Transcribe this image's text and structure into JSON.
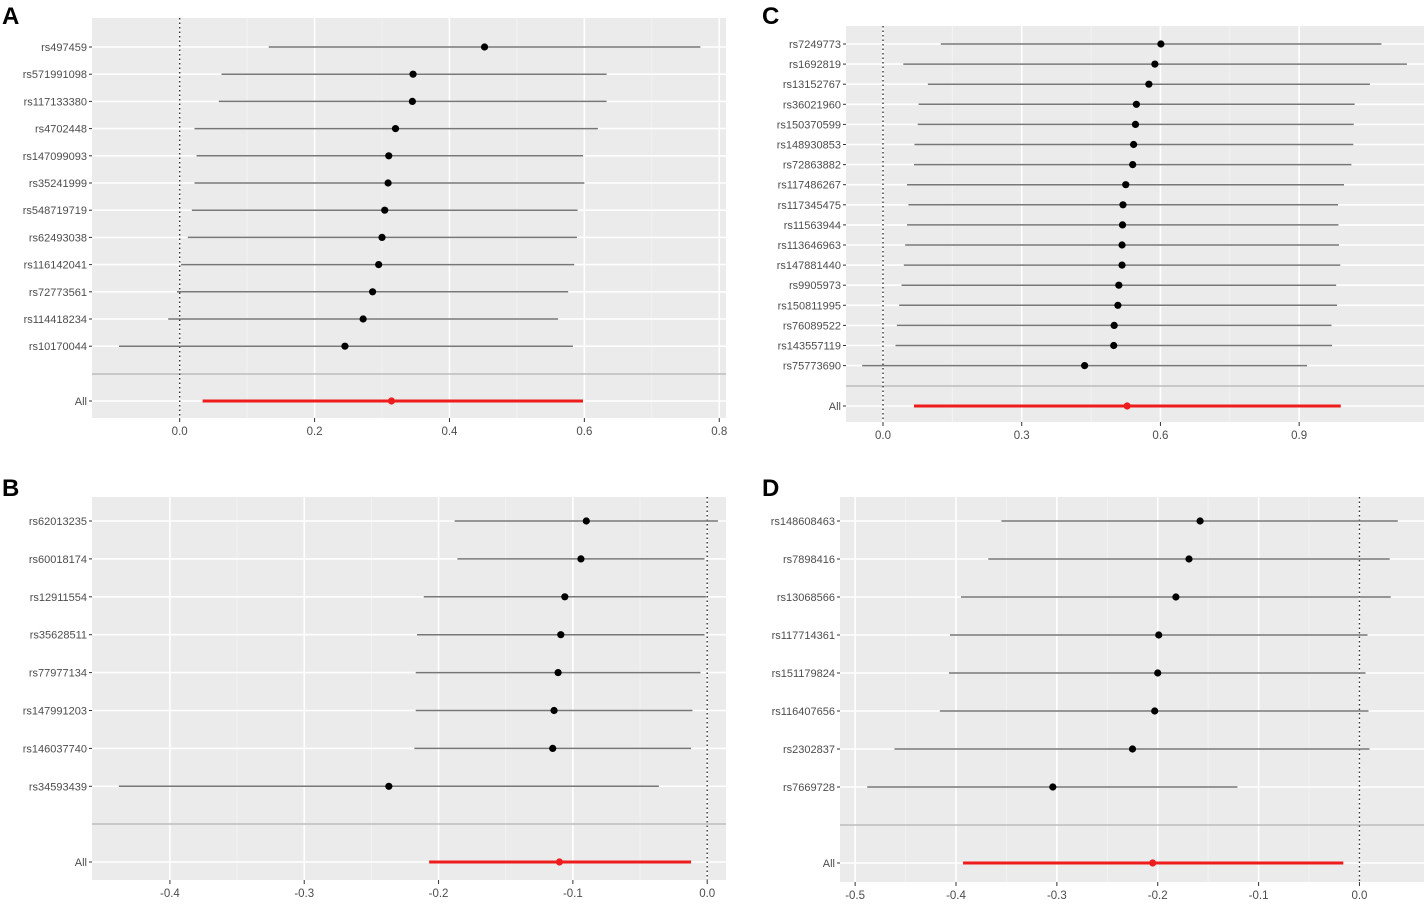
{
  "colors": {
    "panel_bg": "#ebebeb",
    "grid_major": "#ffffff",
    "grid_minor": "#f4f4f4",
    "ci_line": "#777777",
    "point": "#000000",
    "overall": "#ee1c1c",
    "separator": "#bdbdbd",
    "tick_text": "#4d4d4d",
    "panel_label": "#000000"
  },
  "chart_data": [
    {
      "id": "A",
      "type": "forest",
      "panel_label": "A",
      "xlim": [
        -0.13,
        0.81
      ],
      "xticks": [
        0.0,
        0.2,
        0.4,
        0.6,
        0.8
      ],
      "xtick_labels": [
        "0.0",
        "0.2",
        "0.4",
        "0.6",
        "0.8"
      ],
      "null_line": 0.0,
      "rows": [
        {
          "label": "rs497459",
          "est": 0.452,
          "lo": 0.132,
          "hi": 0.772
        },
        {
          "label": "rs571991098",
          "est": 0.346,
          "lo": 0.062,
          "hi": 0.633
        },
        {
          "label": "rs117133380",
          "est": 0.345,
          "lo": 0.058,
          "hi": 0.633
        },
        {
          "label": "rs4702448",
          "est": 0.32,
          "lo": 0.022,
          "hi": 0.62
        },
        {
          "label": "rs147099093",
          "est": 0.31,
          "lo": 0.025,
          "hi": 0.598
        },
        {
          "label": "rs35241999",
          "est": 0.309,
          "lo": 0.022,
          "hi": 0.6
        },
        {
          "label": "rs548719719",
          "est": 0.304,
          "lo": 0.018,
          "hi": 0.59
        },
        {
          "label": "rs62493038",
          "est": 0.3,
          "lo": 0.012,
          "hi": 0.589
        },
        {
          "label": "rs116142041",
          "est": 0.295,
          "lo": 0.002,
          "hi": 0.585
        },
        {
          "label": "rs72773561",
          "est": 0.286,
          "lo": -0.004,
          "hi": 0.576
        },
        {
          "label": "rs114418234",
          "est": 0.272,
          "lo": -0.017,
          "hi": 0.561
        },
        {
          "label": "rs10170044",
          "est": 0.245,
          "lo": -0.09,
          "hi": 0.583
        }
      ],
      "overall": {
        "label": "All",
        "est": 0.314,
        "lo": 0.034,
        "hi": 0.598
      }
    },
    {
      "id": "B",
      "type": "forest",
      "panel_label": "B",
      "xlim": [
        -0.458,
        0.014
      ],
      "xticks": [
        -0.4,
        -0.3,
        -0.2,
        -0.1,
        0.0
      ],
      "xtick_labels": [
        "-0.4",
        "-0.3",
        "-0.2",
        "-0.1",
        "0.0"
      ],
      "null_line": 0.0,
      "rows": [
        {
          "label": "rs62013235",
          "est": -0.09,
          "lo": -0.188,
          "hi": 0.008
        },
        {
          "label": "rs60018174",
          "est": -0.094,
          "lo": -0.186,
          "hi": -0.002
        },
        {
          "label": "rs12911554",
          "est": -0.106,
          "lo": -0.211,
          "hi": -0.001
        },
        {
          "label": "rs35628511",
          "est": -0.109,
          "lo": -0.216,
          "hi": -0.002
        },
        {
          "label": "rs77977134",
          "est": -0.111,
          "lo": -0.217,
          "hi": -0.005
        },
        {
          "label": "rs147991203",
          "est": -0.114,
          "lo": -0.217,
          "hi": -0.011
        },
        {
          "label": "rs146037740",
          "est": -0.115,
          "lo": -0.218,
          "hi": -0.012
        },
        {
          "label": "rs34593439",
          "est": -0.237,
          "lo": -0.438,
          "hi": -0.036
        }
      ],
      "overall": {
        "label": "All",
        "est": -0.11,
        "lo": -0.207,
        "hi": -0.012
      }
    },
    {
      "id": "C",
      "type": "forest",
      "panel_label": "C",
      "xlim": [
        -0.08,
        1.17
      ],
      "xticks": [
        0.0,
        0.3,
        0.6,
        0.9
      ],
      "xtick_labels": [
        "0.0",
        "0.3",
        "0.6",
        "0.9"
      ],
      "null_line": 0.0,
      "rows": [
        {
          "label": "rs7249773",
          "est": 0.601,
          "lo": 0.125,
          "hi": 1.078
        },
        {
          "label": "rs1692819",
          "est": 0.588,
          "lo": 0.044,
          "hi": 1.133
        },
        {
          "label": "rs13152767",
          "est": 0.575,
          "lo": 0.097,
          "hi": 1.053
        },
        {
          "label": "rs36021960",
          "est": 0.548,
          "lo": 0.077,
          "hi": 1.02
        },
        {
          "label": "rs150370599",
          "est": 0.546,
          "lo": 0.075,
          "hi": 1.018
        },
        {
          "label": "rs148930853",
          "est": 0.542,
          "lo": 0.068,
          "hi": 1.017
        },
        {
          "label": "rs72863882",
          "est": 0.54,
          "lo": 0.067,
          "hi": 1.013
        },
        {
          "label": "rs117486267",
          "est": 0.525,
          "lo": 0.052,
          "hi": 0.997
        },
        {
          "label": "rs117345475",
          "est": 0.519,
          "lo": 0.055,
          "hi": 0.984
        },
        {
          "label": "rs11563944",
          "est": 0.518,
          "lo": 0.052,
          "hi": 0.985
        },
        {
          "label": "rs113646963",
          "est": 0.517,
          "lo": 0.048,
          "hi": 0.986
        },
        {
          "label": "rs147881440",
          "est": 0.517,
          "lo": 0.045,
          "hi": 0.989
        },
        {
          "label": "rs9905973",
          "est": 0.51,
          "lo": 0.04,
          "hi": 0.98
        },
        {
          "label": "rs150811995",
          "est": 0.508,
          "lo": 0.035,
          "hi": 0.982
        },
        {
          "label": "rs76089522",
          "est": 0.5,
          "lo": 0.03,
          "hi": 0.97
        },
        {
          "label": "rs143557119",
          "est": 0.499,
          "lo": 0.027,
          "hi": 0.971
        },
        {
          "label": "rs75773690",
          "est": 0.436,
          "lo": -0.045,
          "hi": 0.917
        }
      ],
      "overall": {
        "label": "All",
        "est": 0.528,
        "lo": 0.067,
        "hi": 0.99
      }
    },
    {
      "id": "D",
      "type": "forest",
      "panel_label": "D",
      "xlim": [
        -0.515,
        0.064
      ],
      "xticks": [
        -0.5,
        -0.4,
        -0.3,
        -0.2,
        -0.1,
        0.0
      ],
      "xtick_labels": [
        "-0.5",
        "-0.4",
        "-0.3",
        "-0.2",
        "-0.1",
        "0.0"
      ],
      "null_line": 0.0,
      "rows": [
        {
          "label": "rs148608463",
          "est": -0.158,
          "lo": -0.355,
          "hi": 0.038
        },
        {
          "label": "rs7898416",
          "est": -0.169,
          "lo": -0.368,
          "hi": 0.03
        },
        {
          "label": "rs13068566",
          "est": -0.182,
          "lo": -0.395,
          "hi": 0.031
        },
        {
          "label": "rs117714361",
          "est": -0.199,
          "lo": -0.406,
          "hi": 0.008
        },
        {
          "label": "rs151179824",
          "est": -0.2,
          "lo": -0.407,
          "hi": 0.006
        },
        {
          "label": "rs116407656",
          "est": -0.203,
          "lo": -0.416,
          "hi": 0.009
        },
        {
          "label": "rs2302837",
          "est": -0.225,
          "lo": -0.461,
          "hi": 0.01
        },
        {
          "label": "rs7669728",
          "est": -0.304,
          "lo": -0.488,
          "hi": -0.121
        }
      ],
      "overall": {
        "label": "All",
        "est": -0.205,
        "lo": -0.393,
        "hi": -0.016
      }
    }
  ]
}
